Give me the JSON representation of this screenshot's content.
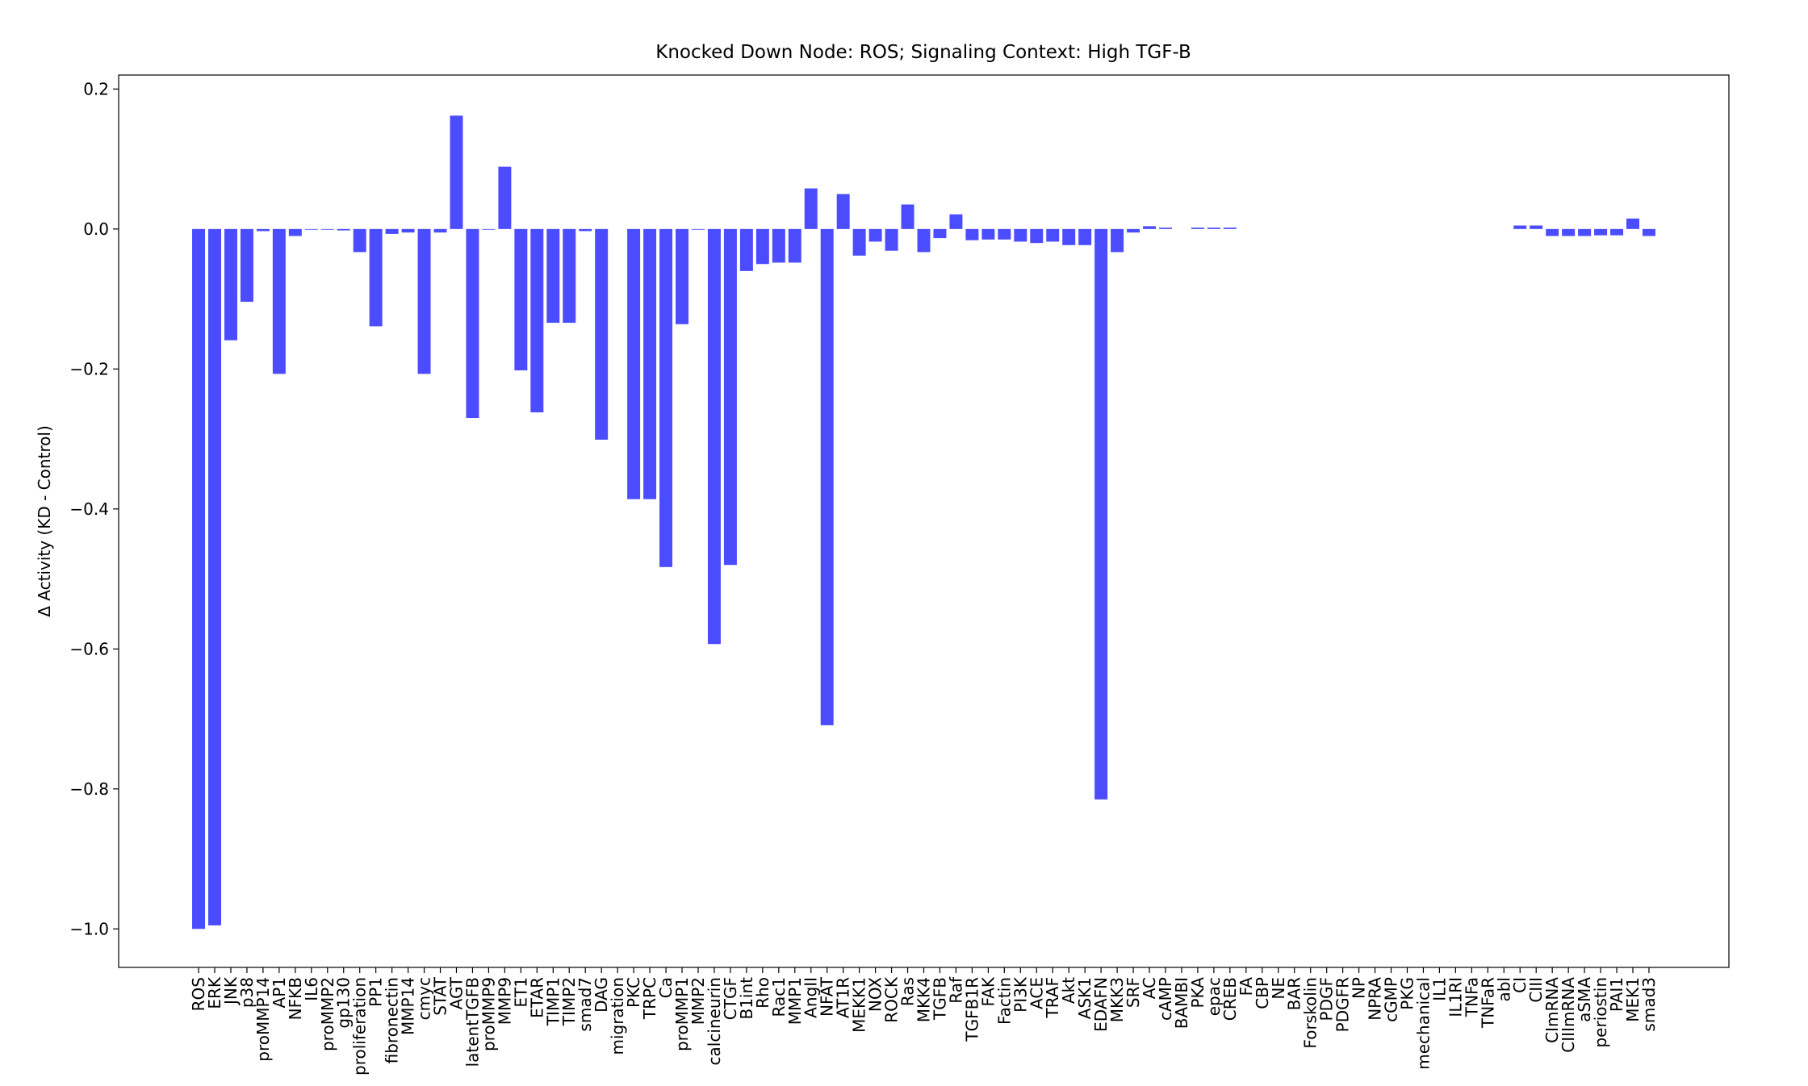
{
  "chart_data": {
    "type": "bar",
    "title": "Knocked Down Node: ROS; Signaling Context: High TGF-B",
    "ylabel": "Δ Activity (KD - Control)",
    "color": "#4c4cff",
    "categories": [
      "ROS",
      "ERK",
      "JNK",
      "p38",
      "proMMP14",
      "AP1",
      "NFKB",
      "IL6",
      "proMMP2",
      "gp130",
      "proliferation",
      "PP1",
      "fibronectin",
      "MMP14",
      "cmyc",
      "STAT",
      "AGT",
      "latentTGFB",
      "proMMP9",
      "MMP9",
      "ET1",
      "ETAR",
      "TIMP1",
      "TIMP2",
      "smad7",
      "DAG",
      "migration",
      "PKC",
      "TRPC",
      "Ca",
      "proMMP1",
      "MMP2",
      "calcineurin",
      "CTGF",
      "B1int",
      "Rho",
      "Rac1",
      "MMP1",
      "AngII",
      "NFAT",
      "AT1R",
      "MEKK1",
      "NOX",
      "ROCK",
      "Ras",
      "MKK4",
      "TGFB",
      "Raf",
      "TGFB1R",
      "FAK",
      "Factin",
      "PI3K",
      "ACE",
      "TRAF",
      "Akt",
      "ASK1",
      "EDAFN",
      "MKK3",
      "SRF",
      "AC",
      "cAMP",
      "BAMBI",
      "PKA",
      "epac",
      "CREB",
      "FA",
      "CBP",
      "NE",
      "BAR",
      "Forskolin",
      "PDGF",
      "PDGFR",
      "NP",
      "NPRA",
      "cGMP",
      "PKG",
      "mechanical",
      "IL1",
      "IL1RI",
      "TNFa",
      "TNFaR",
      "abl",
      "CI",
      "CIII",
      "CImRNA",
      "CIIImRNA",
      "aSMA",
      "periostin",
      "PAI1",
      "MEK1",
      "smad3"
    ],
    "values": [
      -1.0,
      -0.995,
      -0.159,
      -0.104,
      -0.003,
      -0.207,
      -0.01,
      -0.001,
      -0.001,
      -0.002,
      -0.033,
      -0.139,
      -0.007,
      -0.005,
      -0.207,
      -0.005,
      0.162,
      -0.27,
      -0.001,
      0.089,
      -0.202,
      -0.262,
      -0.134,
      -0.134,
      -0.003,
      -0.301,
      0,
      -0.386,
      -0.386,
      -0.483,
      -0.136,
      -0.001,
      -0.593,
      -0.48,
      -0.06,
      -0.05,
      -0.048,
      -0.048,
      0.058,
      -0.709,
      0.05,
      -0.038,
      -0.018,
      -0.031,
      0.035,
      -0.033,
      -0.013,
      0.021,
      -0.016,
      -0.015,
      -0.015,
      -0.018,
      -0.02,
      -0.018,
      -0.023,
      -0.023,
      -0.815,
      -0.033,
      -0.005,
      0.004,
      0.002,
      0,
      0.002,
      0.002,
      0.002,
      0,
      0,
      0,
      0,
      0,
      0,
      0,
      0,
      0,
      0,
      0,
      0,
      0,
      0,
      0,
      0,
      0,
      0.005,
      0.005,
      -0.01,
      -0.01,
      -0.01,
      -0.009,
      -0.009,
      0.015,
      -0.01
    ],
    "ylim": [
      -1.055,
      0.22
    ],
    "yticks": [
      {
        "value": -1.0,
        "label": "−1.0"
      },
      {
        "value": -0.8,
        "label": "−0.8"
      },
      {
        "value": -0.6,
        "label": "−0.6"
      },
      {
        "value": -0.4,
        "label": "−0.4"
      },
      {
        "value": -0.2,
        "label": "−0.2"
      },
      {
        "value": 0.0,
        "label": "0.0"
      },
      0.2
    ]
  }
}
